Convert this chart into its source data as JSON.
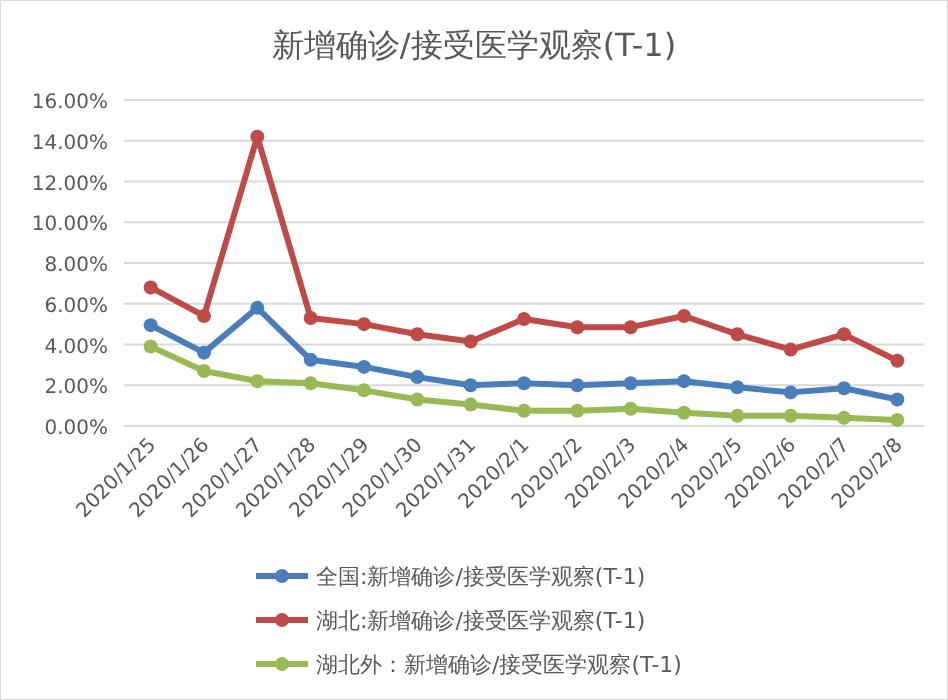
{
  "chart_data": {
    "type": "line",
    "title": "新增确诊/接受医学观察(T-1)",
    "categories": [
      "2020/1/25",
      "2020/1/26",
      "2020/1/27",
      "2020/1/28",
      "2020/1/29",
      "2020/1/30",
      "2020/1/31",
      "2020/2/1",
      "2020/2/2",
      "2020/2/3",
      "2020/2/4",
      "2020/2/5",
      "2020/2/6",
      "2020/2/7",
      "2020/2/8"
    ],
    "series": [
      {
        "name": "全国:新增确诊/接受医学观察(T-1)",
        "color": "#4a7ebb",
        "values": [
          4.95,
          3.6,
          5.8,
          3.25,
          2.9,
          2.4,
          2.0,
          2.1,
          2.0,
          2.1,
          2.2,
          1.9,
          1.65,
          1.85,
          1.3
        ]
      },
      {
        "name": "湖北:新增确诊/接受医学观察(T-1)",
        "color": "#be4b48",
        "values": [
          6.8,
          5.4,
          14.2,
          5.3,
          5.0,
          4.5,
          4.15,
          5.25,
          4.85,
          4.85,
          5.4,
          4.5,
          3.75,
          4.5,
          3.2
        ]
      },
      {
        "name": "湖北外：新增确诊/接受医学观察(T-1)",
        "color": "#98b954",
        "values": [
          3.9,
          2.7,
          2.2,
          2.1,
          1.75,
          1.3,
          1.05,
          0.75,
          0.75,
          0.85,
          0.65,
          0.5,
          0.5,
          0.4,
          0.3
        ]
      }
    ],
    "ylim": [
      0,
      16
    ],
    "yticks": [
      {
        "value": 0,
        "label": "0.00%"
      },
      {
        "value": 2,
        "label": "2.00%"
      },
      {
        "value": 4,
        "label": "4.00%"
      },
      {
        "value": 6,
        "label": "6.00%"
      },
      {
        "value": 8,
        "label": "8.00%"
      },
      {
        "value": 10,
        "label": "10.00%"
      },
      {
        "value": 12,
        "label": "12.00%"
      },
      {
        "value": 14,
        "label": "14.00%"
      },
      {
        "value": 16,
        "label": "16.00%"
      }
    ],
    "grid": "y",
    "legend": "bottom",
    "marker": "circle",
    "line_style": "solid"
  }
}
